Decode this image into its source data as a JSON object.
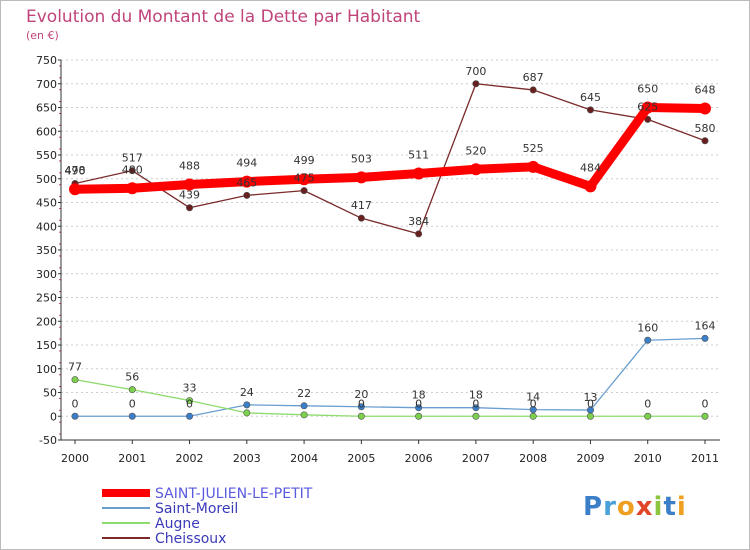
{
  "chart_data": {
    "type": "line",
    "title": "Evolution du Montant de la Dette par Habitant",
    "unit_label": "(en €)",
    "x": [
      "2000",
      "2001",
      "2002",
      "2003",
      "2004",
      "2005",
      "2006",
      "2007",
      "2008",
      "2009",
      "2010",
      "2011"
    ],
    "y_ticks": [
      "-50",
      "0",
      "50",
      "100",
      "150",
      "200",
      "250",
      "300",
      "350",
      "400",
      "450",
      "500",
      "550",
      "600",
      "650",
      "700",
      "750"
    ],
    "ylim": [
      -50,
      750
    ],
    "grid": "horizontal dotted",
    "legend_position": "bottom-left",
    "series": [
      {
        "name": "SAINT-JULIEN-LE-PETIT",
        "color": "#ff0000",
        "values": [
          478,
          480,
          488,
          494,
          499,
          503,
          511,
          520,
          525,
          484,
          650,
          648
        ],
        "labels": [
          "478",
          "480",
          "488",
          "494",
          "499",
          "503",
          "511",
          "520",
          "525",
          "484",
          "650",
          "648"
        ]
      },
      {
        "name": "Saint-Moreil",
        "color": "#6a9fd0",
        "values": [
          0,
          0,
          0,
          24,
          22,
          20,
          18,
          18,
          14,
          13,
          160,
          164
        ],
        "labels": [
          "0",
          "0",
          "0",
          "24",
          "22",
          "20",
          "18",
          "18",
          "14",
          "13",
          "160",
          "164"
        ]
      },
      {
        "name": "Augne",
        "color": "#8fdc6e",
        "values": [
          77,
          56,
          33,
          7,
          3,
          0,
          0,
          0,
          0,
          0,
          0,
          0
        ],
        "labels": [
          "77",
          "56",
          "33",
          "",
          "",
          "0",
          "0",
          "0",
          "0",
          "0",
          "0",
          "0"
        ]
      },
      {
        "name": "Cheissoux",
        "color": "#7a2a2a",
        "values": [
          490,
          517,
          439,
          465,
          475,
          417,
          384,
          700,
          687,
          645,
          625,
          580
        ],
        "labels": [
          "490",
          "517",
          "439",
          "465",
          "475",
          "417",
          "384",
          "700",
          "687",
          "645",
          "625",
          "580"
        ]
      }
    ]
  },
  "logo": {
    "text": "Prox iti"
  }
}
